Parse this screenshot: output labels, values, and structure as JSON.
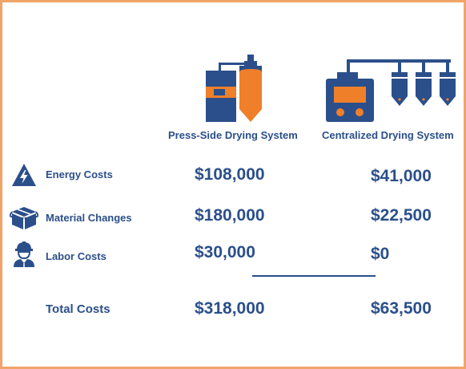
{
  "columns": [
    {
      "label": "Press-Side Drying System",
      "icon": "press-side-dryer-icon"
    },
    {
      "label": "Centralized Drying System",
      "icon": "centralized-dryer-icon"
    }
  ],
  "rows": [
    {
      "label": "Energy Costs",
      "icon": "energy-lightning-icon",
      "press_side": "$108,000",
      "centralized": "$41,000"
    },
    {
      "label": "Material Changes",
      "icon": "material-boxes-icon",
      "press_side": "$180,000",
      "centralized": "$22,500"
    },
    {
      "label": "Labor Costs",
      "icon": "worker-icon",
      "press_side": "$30,000",
      "centralized": "$0"
    }
  ],
  "total": {
    "label": "Total Costs",
    "press_side": "$318,000",
    "centralized": "$63,500"
  },
  "colors": {
    "navy": "#2b4f8a",
    "orange": "#f07f2a",
    "border": "#f0a46a"
  }
}
